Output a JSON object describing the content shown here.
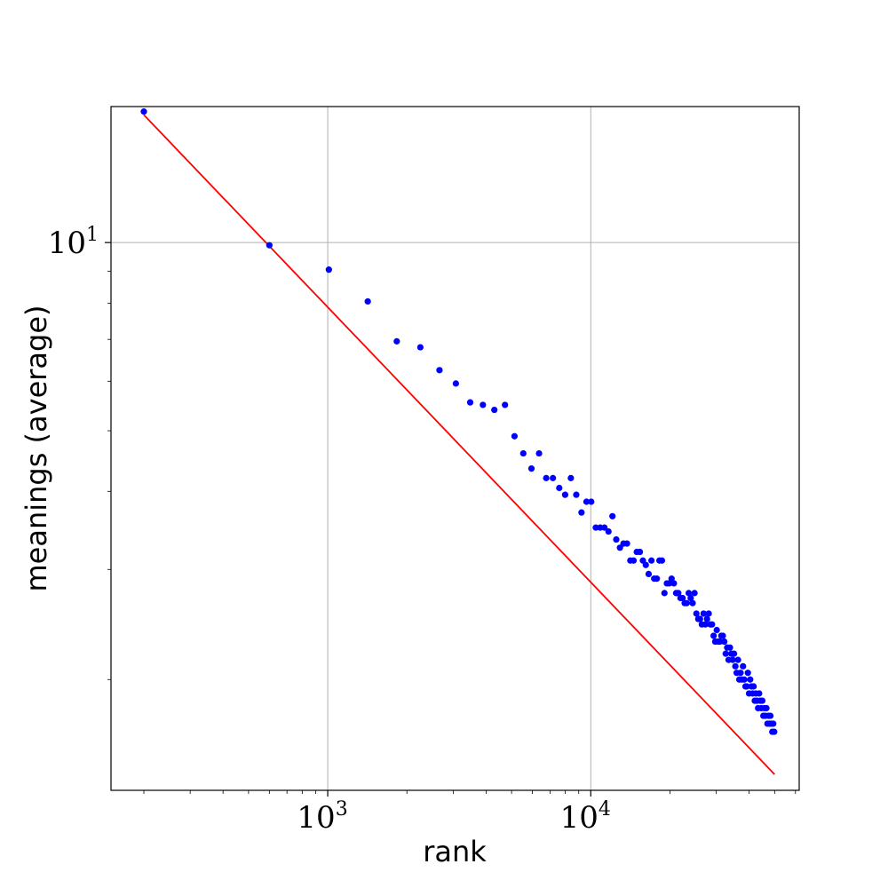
{
  "chart_data": {
    "type": "scatter",
    "title": "",
    "xlabel": "rank",
    "ylabel": "meanings (average)",
    "x_scale": "log",
    "y_scale": "log",
    "xlim": [
      150,
      62000
    ],
    "ylim": [
      1.33,
      16.5
    ],
    "grid": true,
    "x_ticks": [
      {
        "value": 1000,
        "base": "10",
        "exp": "3"
      },
      {
        "value": 10000,
        "base": "10",
        "exp": "4"
      }
    ],
    "y_ticks": [
      {
        "value": 10,
        "base": "10",
        "exp": "1"
      }
    ],
    "colors": {
      "points": "#0000ff",
      "fit": "#ff0000"
    },
    "fit_line": {
      "x": [
        200,
        50000
      ],
      "y": [
        16.0,
        1.41
      ]
    },
    "series": [
      {
        "x": [
          200,
          600,
          1010,
          1420,
          1830,
          2250,
          2660,
          3070,
          3480,
          3890,
          4300,
          4720,
          5130,
          5540,
          5950,
          6360,
          6770,
          7180,
          7590,
          7990,
          8400,
          8810,
          9220,
          9630,
          10040,
          10450,
          10860,
          11270,
          11680,
          12090,
          12500,
          12910,
          13320,
          13730,
          14140,
          14550,
          14960,
          15370,
          15780,
          16190,
          16600,
          17010,
          17420,
          17830,
          18240,
          18650,
          19060,
          19470,
          19880,
          20290,
          20700,
          21110,
          21520,
          21930,
          22340,
          22750,
          23160,
          23570,
          23980,
          24390,
          24800,
          25210,
          25620,
          26030,
          26440,
          26850,
          27260,
          27670,
          28080,
          28490,
          28900,
          29310,
          29720,
          30130,
          30540,
          30950,
          31360,
          31770,
          32180,
          32590,
          33000,
          33410,
          33820,
          34230,
          34640,
          35050,
          35460,
          35870,
          36280,
          36690,
          37100,
          37510,
          37920,
          38330,
          38740,
          39150,
          39560,
          39970,
          40380,
          40790,
          41200,
          41610,
          42020,
          42430,
          42840,
          43250,
          43660,
          44070,
          44480,
          44890,
          45300,
          45710,
          46120,
          46530,
          46940,
          47350,
          47760,
          48170,
          48580,
          48990,
          49400,
          49810
        ],
        "y": [
          16.2,
          9.9,
          9.05,
          8.05,
          6.95,
          6.8,
          6.25,
          5.95,
          5.55,
          5.5,
          5.4,
          5.5,
          4.9,
          4.6,
          4.35,
          4.6,
          4.2,
          4.2,
          4.05,
          3.95,
          4.2,
          3.95,
          3.7,
          3.85,
          3.85,
          3.5,
          3.5,
          3.5,
          3.45,
          3.65,
          3.35,
          3.25,
          3.3,
          3.3,
          3.1,
          3.1,
          3.2,
          3.2,
          3.1,
          3.05,
          2.95,
          3.1,
          2.9,
          2.9,
          3.1,
          3.1,
          2.75,
          2.85,
          2.85,
          2.9,
          2.85,
          2.75,
          2.75,
          2.7,
          2.7,
          2.65,
          2.65,
          2.75,
          2.7,
          2.65,
          2.75,
          2.55,
          2.5,
          2.5,
          2.45,
          2.55,
          2.45,
          2.5,
          2.55,
          2.45,
          2.45,
          2.35,
          2.3,
          2.4,
          2.3,
          2.3,
          2.35,
          2.35,
          2.3,
          2.2,
          2.25,
          2.15,
          2.25,
          2.2,
          2.15,
          2.2,
          2.1,
          2.05,
          2.15,
          2.0,
          2.05,
          2.0,
          2.1,
          2.0,
          1.95,
          1.95,
          2.05,
          1.9,
          2.0,
          1.95,
          1.9,
          1.95,
          1.85,
          1.9,
          1.85,
          1.8,
          1.9,
          1.85,
          1.8,
          1.85,
          1.75,
          1.8,
          1.75,
          1.8,
          1.7,
          1.75,
          1.7,
          1.75,
          1.7,
          1.65,
          1.7,
          1.65
        ]
      }
    ]
  }
}
